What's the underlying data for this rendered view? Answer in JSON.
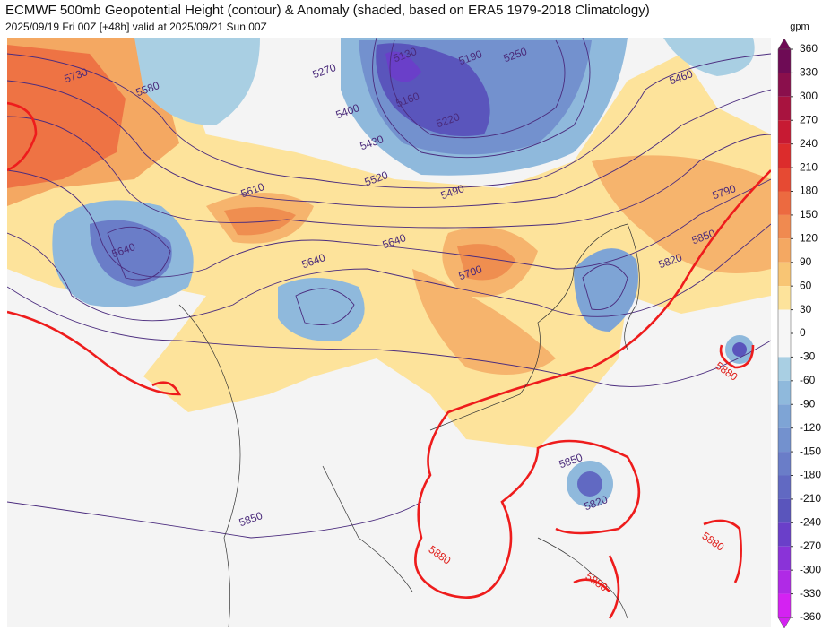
{
  "header": {
    "title": "ECMWF 500mb Geopotential Height (contour) & Anomaly (shaded, based on ERA5 1979-2018 Climatology)",
    "subtitle": "2025/09/19 Fri 00Z [+48h] valid at 2025/09/21 Sun 00Z"
  },
  "colorbar": {
    "unit": "gpm",
    "ticks": [
      360,
      330,
      300,
      270,
      240,
      210,
      180,
      150,
      120,
      90,
      60,
      30,
      0,
      -30,
      -60,
      -90,
      -120,
      -150,
      -180,
      -210,
      -240,
      -270,
      -300,
      -330,
      -360
    ],
    "colors": [
      "#6e0b55",
      "#8a0f4c",
      "#a8133f",
      "#c71a33",
      "#dc2c2c",
      "#e64a33",
      "#ec6a40",
      "#f08a50",
      "#f4a862",
      "#f8c574",
      "#fde39b",
      "#f6f6f6",
      "#f6f6f6",
      "#a9cfe3",
      "#8fb9dc",
      "#7ea4d5",
      "#7391ce",
      "#6a7dc8",
      "#6169c2",
      "#5a55bc",
      "#6a3fc9",
      "#8a33d8",
      "#b02ae6",
      "#d422f2"
    ]
  },
  "contour_labels": [
    "5730",
    "5580",
    "5130",
    "5190",
    "5250",
    "5160",
    "5220",
    "5270",
    "5400",
    "5430",
    "5520",
    "5490",
    "5610",
    "5640",
    "5640",
    "5640",
    "5700",
    "5460",
    "5790",
    "5850",
    "5820",
    "5880",
    "5850",
    "5820",
    "5850",
    "5880",
    "5880",
    "5880"
  ]
}
